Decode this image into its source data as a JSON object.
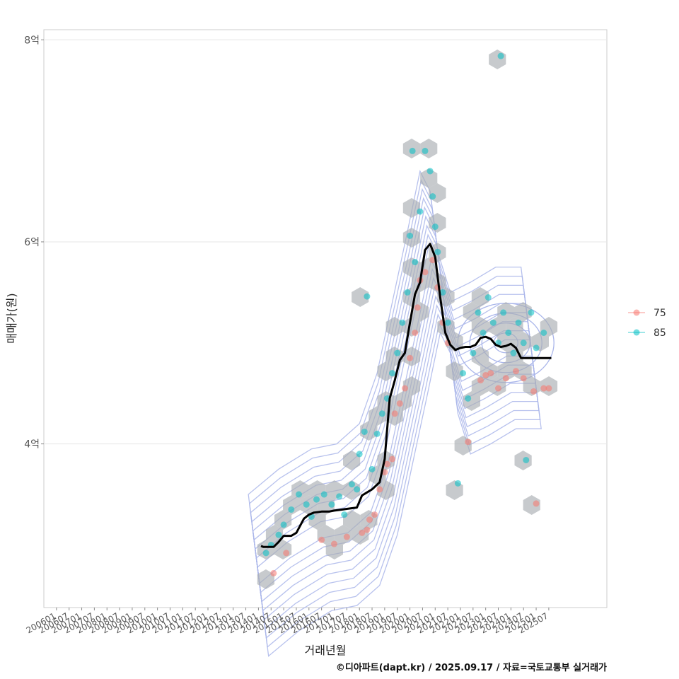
{
  "chart_data": {
    "type": "scatter",
    "xlabel": "거래년월",
    "ylabel": "매매가(원)",
    "y_ticks": [
      {
        "value": 4,
        "label": "4억"
      },
      {
        "value": 6,
        "label": "6억"
      },
      {
        "value": 8,
        "label": "8억"
      }
    ],
    "ylim": [
      2.38,
      8.1
    ],
    "xlim": [
      2005.5,
      2027.8
    ],
    "x_ticks": [
      "200601",
      "200607",
      "200701",
      "200707",
      "200801",
      "200807",
      "200901",
      "200907",
      "201001",
      "201007",
      "201101",
      "201107",
      "201201",
      "201207",
      "201301",
      "201307",
      "201401",
      "201407",
      "201501",
      "201507",
      "201601",
      "201607",
      "201701",
      "201707",
      "201801",
      "201807",
      "201901",
      "201907",
      "202001",
      "202007",
      "202101",
      "202107",
      "202201",
      "202207",
      "202301",
      "202307",
      "202401",
      "202407",
      "202501",
      "202507"
    ],
    "grid": true,
    "legend": {
      "position": "right",
      "entries": [
        {
          "name": "75",
          "color": "#F8766D"
        },
        {
          "name": "85",
          "color": "#00BFC4"
        }
      ]
    },
    "trend_line": {
      "name": "moving average",
      "color": "#000000",
      "x": [
        2014.1,
        2014.2,
        2014.4,
        2014.6,
        2014.8,
        2015.0,
        2015.3,
        2015.5,
        2015.8,
        2016.0,
        2016.2,
        2016.5,
        2016.8,
        2017.0,
        2017.3,
        2017.6,
        2017.9,
        2018.1,
        2018.3,
        2018.5,
        2018.8,
        2019.0,
        2019.2,
        2019.4,
        2019.6,
        2019.8,
        2020.0,
        2020.2,
        2020.4,
        2020.6,
        2020.8,
        2021.0,
        2021.2,
        2021.4,
        2021.6,
        2021.8,
        2022.0,
        2022.2,
        2022.4,
        2022.6,
        2022.8,
        2023.0,
        2023.2,
        2023.4,
        2023.6,
        2023.8,
        2024.0,
        2024.2,
        2024.4,
        2024.6,
        2024.8,
        2025.0,
        2025.2,
        2025.4,
        2025.6
      ],
      "y": [
        2.99,
        2.98,
        2.98,
        2.98,
        3.03,
        3.09,
        3.09,
        3.12,
        3.26,
        3.3,
        3.32,
        3.33,
        3.33,
        3.34,
        3.35,
        3.36,
        3.37,
        3.49,
        3.52,
        3.55,
        3.62,
        3.85,
        4.45,
        4.63,
        4.83,
        4.9,
        5.2,
        5.48,
        5.6,
        5.92,
        5.98,
        5.85,
        5.45,
        5.1,
        4.98,
        4.93,
        4.95,
        4.96,
        4.96,
        4.98,
        5.05,
        5.06,
        5.04,
        4.98,
        4.96,
        4.97,
        4.99,
        4.95,
        4.85,
        4.85,
        4.85,
        4.85,
        4.85,
        4.85,
        4.85
      ]
    },
    "series": [
      {
        "name": "75",
        "color": "#F8766D",
        "points": [
          [
            2014.6,
            2.72
          ],
          [
            2015.1,
            2.92
          ],
          [
            2016.5,
            3.05
          ],
          [
            2017.0,
            3.01
          ],
          [
            2017.5,
            3.08
          ],
          [
            2018.1,
            3.12
          ],
          [
            2018.3,
            3.15
          ],
          [
            2018.4,
            3.25
          ],
          [
            2018.6,
            3.3
          ],
          [
            2018.8,
            3.55
          ],
          [
            2019.0,
            3.72
          ],
          [
            2019.1,
            3.8
          ],
          [
            2019.3,
            3.85
          ],
          [
            2019.4,
            4.3
          ],
          [
            2019.6,
            4.4
          ],
          [
            2019.8,
            4.55
          ],
          [
            2020.0,
            4.85
          ],
          [
            2020.2,
            5.1
          ],
          [
            2020.3,
            5.35
          ],
          [
            2020.4,
            5.62
          ],
          [
            2020.6,
            5.7
          ],
          [
            2020.9,
            5.82
          ],
          [
            2021.1,
            5.55
          ],
          [
            2021.3,
            5.2
          ],
          [
            2021.5,
            5.0
          ],
          [
            2022.3,
            4.02
          ],
          [
            2022.8,
            4.63
          ],
          [
            2023.0,
            4.68
          ],
          [
            2023.2,
            4.7
          ],
          [
            2023.5,
            4.55
          ],
          [
            2023.8,
            4.65
          ],
          [
            2024.2,
            4.72
          ],
          [
            2024.5,
            4.65
          ],
          [
            2024.9,
            4.52
          ],
          [
            2025.3,
            4.55
          ],
          [
            2025.5,
            4.55
          ],
          [
            2025.0,
            3.41
          ]
        ]
      },
      {
        "name": "85",
        "color": "#00BFC4",
        "points": [
          [
            2014.3,
            2.92
          ],
          [
            2014.5,
            3.0
          ],
          [
            2014.8,
            3.1
          ],
          [
            2015.0,
            3.2
          ],
          [
            2015.3,
            3.35
          ],
          [
            2015.6,
            3.5
          ],
          [
            2015.9,
            3.4
          ],
          [
            2016.1,
            3.28
          ],
          [
            2016.3,
            3.45
          ],
          [
            2016.6,
            3.5
          ],
          [
            2016.9,
            3.4
          ],
          [
            2017.2,
            3.48
          ],
          [
            2017.4,
            3.3
          ],
          [
            2017.7,
            3.6
          ],
          [
            2017.9,
            3.55
          ],
          [
            2018.0,
            3.9
          ],
          [
            2018.2,
            4.12
          ],
          [
            2018.3,
            5.46
          ],
          [
            2018.5,
            3.75
          ],
          [
            2018.7,
            4.1
          ],
          [
            2018.9,
            4.3
          ],
          [
            2019.1,
            4.45
          ],
          [
            2019.3,
            4.7
          ],
          [
            2019.5,
            4.9
          ],
          [
            2019.7,
            5.2
          ],
          [
            2019.9,
            5.5
          ],
          [
            2020.0,
            6.06
          ],
          [
            2020.1,
            6.9
          ],
          [
            2020.2,
            5.8
          ],
          [
            2020.4,
            6.3
          ],
          [
            2020.6,
            6.9
          ],
          [
            2020.8,
            6.7
          ],
          [
            2020.9,
            6.45
          ],
          [
            2021.0,
            6.15
          ],
          [
            2021.1,
            5.9
          ],
          [
            2021.3,
            5.5
          ],
          [
            2021.5,
            5.2
          ],
          [
            2021.9,
            3.61
          ],
          [
            2022.1,
            4.7
          ],
          [
            2022.3,
            4.45
          ],
          [
            2022.5,
            4.9
          ],
          [
            2022.7,
            5.3
          ],
          [
            2022.9,
            5.1
          ],
          [
            2023.1,
            5.45
          ],
          [
            2023.3,
            5.2
          ],
          [
            2023.5,
            5.0
          ],
          [
            2023.7,
            5.3
          ],
          [
            2023.9,
            5.1
          ],
          [
            2023.6,
            7.84
          ],
          [
            2024.1,
            4.9
          ],
          [
            2024.3,
            5.2
          ],
          [
            2024.5,
            5.0
          ],
          [
            2024.6,
            3.84
          ],
          [
            2024.8,
            5.3
          ],
          [
            2025.0,
            4.95
          ],
          [
            2025.3,
            5.1
          ]
        ]
      }
    ],
    "density_center": [
      2023.8,
      5.0
    ]
  },
  "caption": "©디아파트(dapt.kr) / 2025.09.17 / 자료=국토교통부 실거래가"
}
